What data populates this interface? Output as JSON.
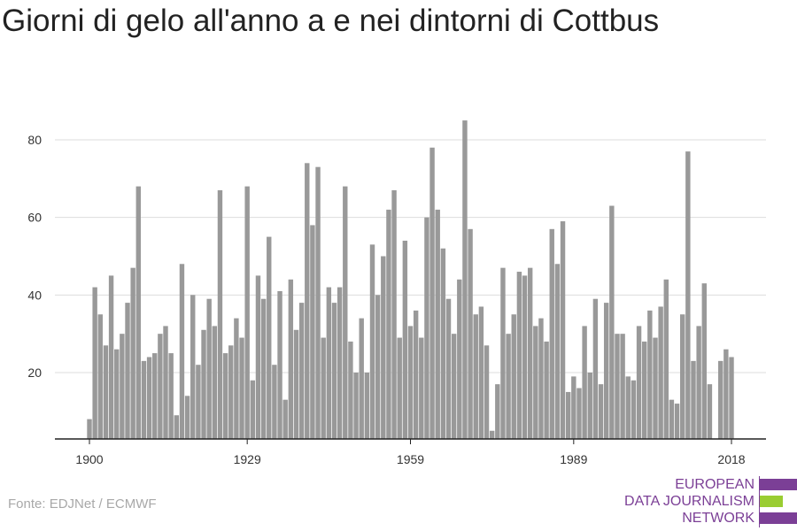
{
  "title": "Giorni di gelo all'anno a e nei dintorni di Cottbus",
  "source": "Fonte: EDJNet / ECMWF",
  "logo": {
    "lines": [
      "EUROPEAN",
      "DATA JOURNALISM",
      "NETWORK"
    ],
    "colors": [
      "#7b3f96",
      "#9acd32",
      "#7b3f96"
    ]
  },
  "chart_data": {
    "type": "bar",
    "title": "Giorni di gelo all'anno a e nei dintorni di Cottbus",
    "xlabel": "",
    "ylabel": "",
    "x_ticks": [
      "1900",
      "1929",
      "1959",
      "1989",
      "2018"
    ],
    "y_ticks": [
      "20",
      "40",
      "60",
      "80"
    ],
    "ylim": [
      2,
      87
    ],
    "grid": true,
    "bar_color": "#999999",
    "x_start": 1900,
    "values": [
      8,
      42,
      35,
      27,
      45,
      26,
      30,
      38,
      47,
      68,
      23,
      24,
      25,
      30,
      32,
      25,
      9,
      48,
      14,
      40,
      22,
      31,
      39,
      32,
      67,
      25,
      27,
      34,
      29,
      68,
      18,
      45,
      39,
      55,
      22,
      41,
      13,
      44,
      31,
      38,
      74,
      58,
      73,
      29,
      42,
      38,
      42,
      68,
      28,
      20,
      34,
      20,
      53,
      40,
      50,
      62,
      67,
      29,
      54,
      32,
      36,
      29,
      60,
      78,
      62,
      52,
      39,
      30,
      44,
      85,
      57,
      35,
      37,
      27,
      5,
      17,
      47,
      30,
      35,
      46,
      45,
      47,
      32,
      34,
      28,
      57,
      48,
      59,
      15,
      19,
      16,
      32,
      20,
      39,
      17,
      38,
      63,
      30,
      30,
      19,
      18,
      32,
      28,
      36,
      29,
      37,
      44,
      13,
      12,
      35,
      77,
      23,
      32,
      43,
      17,
      3,
      23,
      26,
      24
    ]
  }
}
